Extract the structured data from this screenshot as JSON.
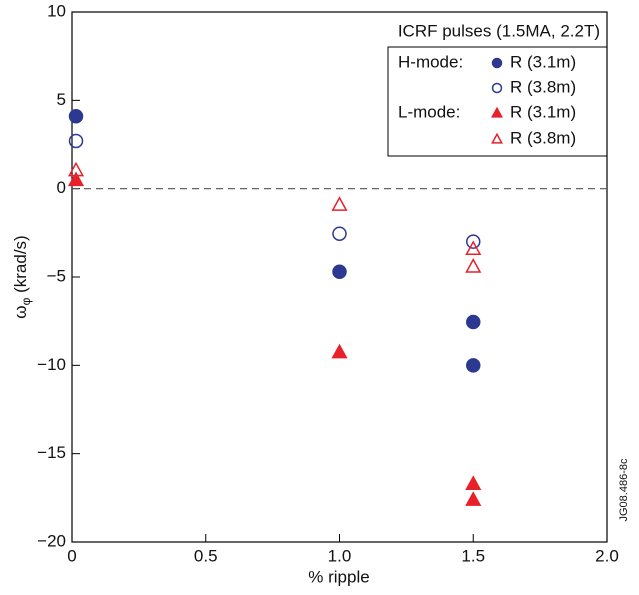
{
  "chart_data": {
    "type": "scatter",
    "xlabel": "% ripple",
    "ylabel": "ω",
    "ylabel_sub": "φ",
    "ylabel_unit": " (krad/s)",
    "legend_title": "ICRF pulses (1.5MA, 2.2T)",
    "side_note": "JG08.486-8c",
    "xlim": [
      0,
      2
    ],
    "ylim": [
      -20,
      10
    ],
    "xticks": [
      0,
      0.5,
      {
        "value": 1,
        "label": "1.0"
      },
      1.5,
      {
        "value": 2,
        "label": "2.0"
      }
    ],
    "yticks": [
      10,
      5,
      0,
      {
        "value": -5,
        "label": "−5"
      },
      {
        "value": -10,
        "label": "−10"
      },
      {
        "value": -15,
        "label": "−15"
      },
      {
        "value": -20,
        "label": "−20"
      }
    ],
    "zero_line": true,
    "series": [
      {
        "name": "R (3.1m)",
        "group": "H-mode:",
        "color": "#2b3990",
        "marker": "circle",
        "filled": true,
        "x": [
          0.015,
          1.0,
          1.5,
          1.5
        ],
        "values": [
          4.1,
          -4.7,
          -7.55,
          -10.0
        ]
      },
      {
        "name": "R (3.8m)",
        "color": "#2b3990",
        "marker": "circle",
        "filled": false,
        "x": [
          0.015,
          1.0,
          1.5
        ],
        "values": [
          2.7,
          -2.55,
          -3.0
        ]
      },
      {
        "name": "R (3.1m)",
        "group": "L-mode:",
        "color": "#e8202a",
        "marker": "triangle",
        "filled": true,
        "x": [
          0.015,
          1.0,
          1.5,
          1.5
        ],
        "values": [
          0.5,
          -9.25,
          -16.7,
          -17.6
        ]
      },
      {
        "name": "R (3.8m)",
        "color": "#e8202a",
        "marker": "triangle",
        "filled": false,
        "x": [
          0.015,
          1.0,
          1.5,
          1.5
        ],
        "values": [
          1.05,
          -0.9,
          -3.4,
          -4.4
        ]
      }
    ]
  }
}
